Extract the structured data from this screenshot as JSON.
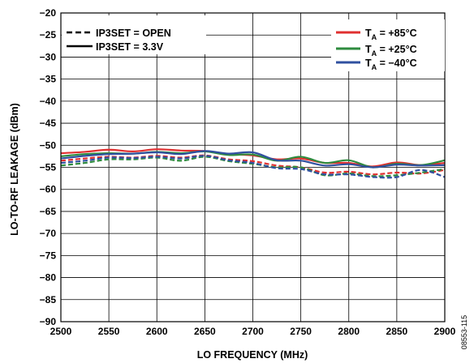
{
  "chart_data": {
    "type": "line",
    "xlabel": "LO FREQUENCY (MHz)",
    "ylabel": "LO-TO-RF LEAKAGE (dBm)",
    "xlim": [
      2500,
      2900
    ],
    "ylim": [
      -90,
      -20
    ],
    "x_ticks": [
      "2500",
      "2550",
      "2600",
      "2650",
      "2700",
      "2750",
      "2800",
      "2850",
      "2900"
    ],
    "y_ticks": [
      "−20",
      "−25",
      "−30",
      "−35",
      "−40",
      "−45",
      "−50",
      "−55",
      "−60",
      "−65",
      "−70",
      "−75",
      "−80",
      "−85",
      "−90"
    ],
    "grid": true,
    "style_legend": [
      {
        "label": "IP3SET = OPEN",
        "dash": "dashed"
      },
      {
        "label": "IP3SET = 3.3V",
        "dash": "solid"
      }
    ],
    "temp_legend": [
      {
        "prefix": "T",
        "sub": "A",
        "suffix": " = +85°C",
        "color": "#e03030"
      },
      {
        "prefix": "T",
        "sub": "A",
        "suffix": " = +25°C",
        "color": "#2e8b3e"
      },
      {
        "prefix": "T",
        "sub": "A",
        "suffix": " = −40°C",
        "color": "#3050a0"
      }
    ],
    "figure_id": "08553-115",
    "series": [
      {
        "color": "#e03030",
        "dash": "solid",
        "x": [
          2500,
          2525,
          2550,
          2575,
          2600,
          2625,
          2650,
          2675,
          2700,
          2725,
          2750,
          2775,
          2800,
          2825,
          2850,
          2875,
          2900
        ],
        "values": [
          -51.8,
          -51.5,
          -51.0,
          -51.4,
          -50.9,
          -51.2,
          -51.3,
          -52.0,
          -52.3,
          -53.2,
          -53.0,
          -54.0,
          -54.0,
          -54.8,
          -53.9,
          -54.5,
          -54.0
        ]
      },
      {
        "color": "#2e8b3e",
        "dash": "solid",
        "x": [
          2500,
          2525,
          2550,
          2575,
          2600,
          2625,
          2650,
          2675,
          2700,
          2725,
          2750,
          2775,
          2800,
          2825,
          2850,
          2875,
          2900
        ],
        "values": [
          -52.5,
          -52.0,
          -51.8,
          -51.9,
          -51.5,
          -51.8,
          -51.4,
          -52.2,
          -52.1,
          -53.5,
          -52.6,
          -54.0,
          -53.4,
          -55.0,
          -54.2,
          -54.5,
          -53.4
        ]
      },
      {
        "color": "#3050a0",
        "dash": "solid",
        "x": [
          2500,
          2525,
          2550,
          2575,
          2600,
          2625,
          2650,
          2675,
          2700,
          2725,
          2750,
          2775,
          2800,
          2825,
          2850,
          2875,
          2900
        ],
        "values": [
          -53.0,
          -52.4,
          -52.0,
          -51.9,
          -51.6,
          -52.0,
          -51.3,
          -51.9,
          -51.6,
          -53.4,
          -53.5,
          -54.6,
          -54.3,
          -55.0,
          -54.4,
          -54.6,
          -54.5
        ]
      },
      {
        "color": "#e03030",
        "dash": "dashed",
        "x": [
          2500,
          2525,
          2550,
          2575,
          2600,
          2625,
          2650,
          2675,
          2700,
          2725,
          2750,
          2775,
          2800,
          2825,
          2850,
          2875,
          2900
        ],
        "values": [
          -53.5,
          -53.0,
          -52.6,
          -52.8,
          -52.4,
          -52.8,
          -52.3,
          -53.2,
          -53.6,
          -54.6,
          -55.0,
          -56.2,
          -56.0,
          -56.6,
          -56.2,
          -56.4,
          -55.6
        ]
      },
      {
        "color": "#2e8b3e",
        "dash": "dashed",
        "x": [
          2500,
          2525,
          2550,
          2575,
          2600,
          2625,
          2650,
          2675,
          2700,
          2725,
          2750,
          2775,
          2800,
          2825,
          2850,
          2875,
          2900
        ],
        "values": [
          -54.6,
          -54.0,
          -53.2,
          -53.2,
          -52.8,
          -53.5,
          -52.6,
          -53.6,
          -54.2,
          -55.0,
          -55.0,
          -56.8,
          -56.4,
          -57.0,
          -56.8,
          -56.2,
          -55.4
        ]
      },
      {
        "color": "#3050a0",
        "dash": "dashed",
        "x": [
          2500,
          2525,
          2550,
          2575,
          2600,
          2625,
          2650,
          2675,
          2700,
          2725,
          2750,
          2775,
          2800,
          2825,
          2850,
          2875,
          2900
        ],
        "values": [
          -54.0,
          -53.5,
          -52.8,
          -52.9,
          -52.6,
          -53.0,
          -52.4,
          -53.4,
          -54.0,
          -55.2,
          -55.4,
          -56.6,
          -56.6,
          -57.2,
          -57.2,
          -55.6,
          -57.2
        ]
      }
    ]
  }
}
